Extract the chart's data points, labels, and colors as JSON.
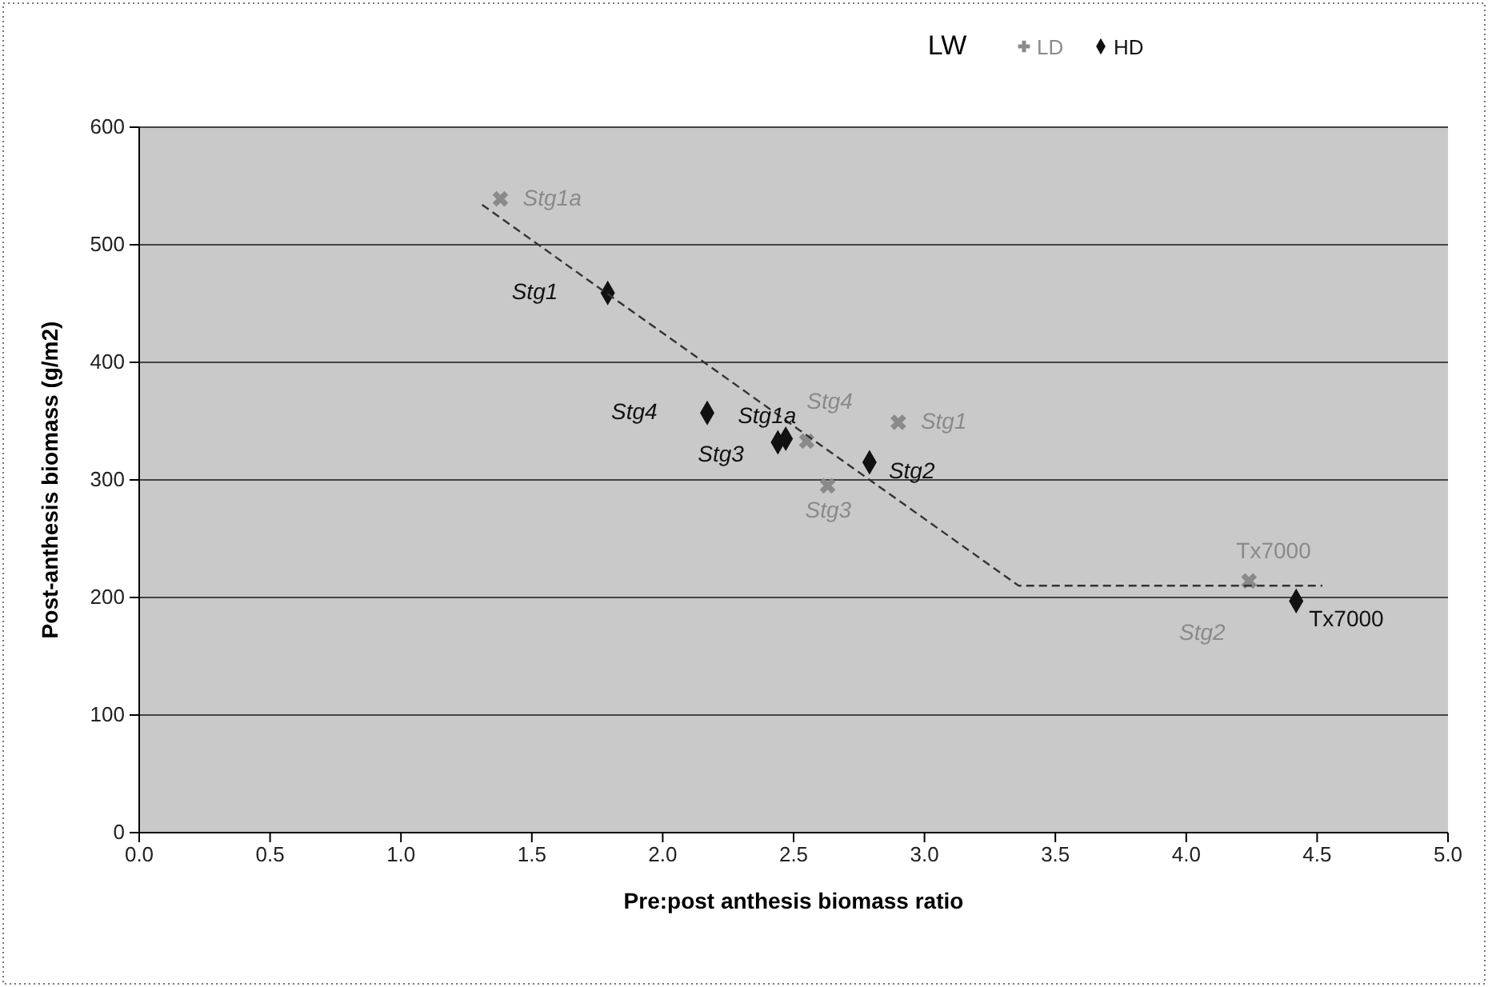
{
  "chart_data": {
    "type": "scatter",
    "title": "LW",
    "xlabel": "Pre:post anthesis biomass ratio",
    "ylabel": "Post-anthesis biomass (g/m2)",
    "xlim": [
      0,
      5
    ],
    "xticks": [
      {
        "value": 0,
        "label": "0.0"
      },
      {
        "value": 0.5,
        "label": "0.5"
      },
      {
        "value": 1,
        "label": "1.0"
      },
      {
        "value": 1.5,
        "label": "1.5"
      },
      {
        "value": 2,
        "label": "2.0"
      },
      {
        "value": 2.5,
        "label": "2.5"
      },
      {
        "value": 3,
        "label": "3.0"
      },
      {
        "value": 3.5,
        "label": "3.5"
      },
      {
        "value": 4,
        "label": "4.0"
      },
      {
        "value": 4.5,
        "label": "4.5"
      },
      {
        "value": 5,
        "label": "5.0"
      }
    ],
    "ylim": [
      0,
      600
    ],
    "yticks": [
      0,
      100,
      200,
      300,
      400,
      500,
      600
    ],
    "grid": "y",
    "legend": "top",
    "series": [
      {
        "name": "LD",
        "color": "#8a8a8a",
        "marker": "cross",
        "x": [
          1.38,
          2.55,
          2.9,
          2.63,
          4.24
        ],
        "values": [
          539,
          333,
          349,
          295,
          214
        ]
      },
      {
        "name": "HD",
        "color": "#111111",
        "marker": "diamond",
        "x": [
          1.79,
          2.17,
          2.47,
          2.44,
          2.79,
          4.42
        ],
        "values": [
          459,
          357,
          335,
          332,
          315,
          197
        ]
      },
      {
        "type": "line",
        "color": "#333333",
        "line_style": "dashed",
        "marker": "none",
        "x": [
          1.31,
          3.36,
          4.52
        ],
        "values": [
          534,
          210,
          210
        ]
      }
    ],
    "annotations": [
      {
        "text": "Stg1a",
        "x": 1.38,
        "y": 539
      },
      {
        "text": "Stg4",
        "x": 2.55,
        "y": 333
      },
      {
        "text": "Stg1",
        "x": 2.9,
        "y": 349
      },
      {
        "text": "Stg3",
        "x": 2.63,
        "y": 295
      },
      {
        "text": "Tx7000",
        "x": 4.24,
        "y": 214
      },
      "Stg2",
      {
        "text": "Stg1",
        "x": 1.79,
        "y": 459
      },
      {
        "text": "Stg4",
        "x": 2.17,
        "y": 357
      },
      {
        "text": "Stg1a",
        "x": 2.47,
        "y": 335
      },
      {
        "text": "Stg3",
        "x": 2.44,
        "y": 332
      },
      {
        "text": "Stg2",
        "x": 2.79,
        "y": 315
      },
      {
        "text": "Tx7000",
        "x": 4.42,
        "y": 197
      }
    ]
  }
}
